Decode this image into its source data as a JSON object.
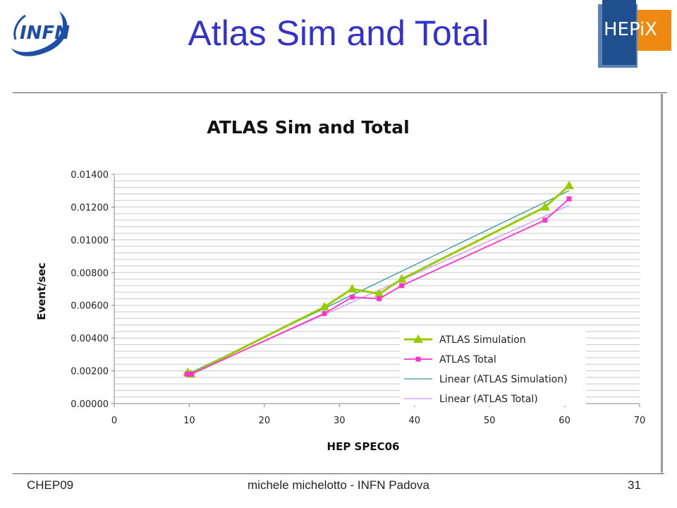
{
  "slide": {
    "title": "Atlas Sim and Total",
    "logo_infn_text": "INFN",
    "logo_hepix_text": "HEPiX",
    "footer_left": "CHEP09",
    "footer_center": "michele michelotto - INFN Padova",
    "footer_right": "31"
  },
  "chart_data": {
    "type": "line",
    "title": "ATLAS Sim and Total",
    "xlabel": "HEP SPEC06",
    "ylabel": "Event/sec",
    "xlim": [
      0,
      70
    ],
    "ylim": [
      0,
      0.014
    ],
    "xticks": [
      0,
      10,
      20,
      30,
      40,
      50,
      60,
      70
    ],
    "yticks": [
      0,
      0.002,
      0.004,
      0.006,
      0.008,
      0.01,
      0.012,
      0.014
    ],
    "ytick_labels": [
      "0.00000",
      "0.00200",
      "0.00400",
      "0.00600",
      "0.00800",
      "0.01000",
      "0.01200",
      "0.01400"
    ],
    "grid": "horizontal",
    "legend_position": "bottom-right",
    "series": [
      {
        "name": "ATLAS Simulation",
        "kind": "line-marker",
        "marker": "triangle",
        "color": "#99cc00",
        "points": [
          [
            9.8,
            0.0019
          ],
          [
            10.2,
            0.0018
          ],
          [
            28.0,
            0.0059
          ],
          [
            31.7,
            0.007
          ],
          [
            35.3,
            0.0067
          ],
          [
            38.3,
            0.0076
          ],
          [
            57.4,
            0.012
          ],
          [
            60.6,
            0.0133
          ]
        ]
      },
      {
        "name": "ATLAS Total",
        "kind": "line-marker",
        "marker": "square",
        "color": "#ff33cc",
        "points": [
          [
            9.7,
            0.0018
          ],
          [
            10.3,
            0.0018
          ],
          [
            28.0,
            0.0055
          ],
          [
            31.7,
            0.0065
          ],
          [
            35.3,
            0.0064
          ],
          [
            38.3,
            0.0072
          ],
          [
            57.4,
            0.0112
          ],
          [
            60.6,
            0.0125
          ]
        ]
      },
      {
        "name": "Linear (ATLAS Simulation)",
        "kind": "trend",
        "color": "#339999",
        "points": [
          [
            9.8,
            0.0018
          ],
          [
            60.6,
            0.013
          ]
        ]
      },
      {
        "name": "Linear (ATLAS Total)",
        "kind": "trend",
        "color": "#cc99ff",
        "points": [
          [
            9.7,
            0.0017
          ],
          [
            60.6,
            0.0121
          ]
        ]
      }
    ]
  }
}
